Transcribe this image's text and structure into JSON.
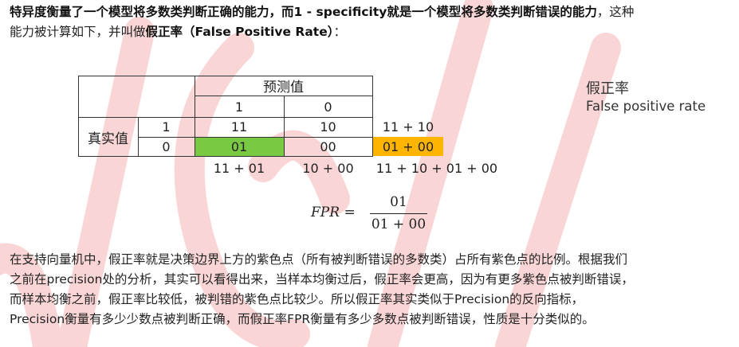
{
  "intro": {
    "line1_part1": "特异度衡量了一个模型将多数类判断正确的能力，而1 - specificity就是一个模型将多数类判断错误的能力",
    "line1_part2": "，这种",
    "line2_part1": "能力被计算如下，并叫做",
    "line2_bold": "假正率（False Positive Rate）",
    "line2_part2": "："
  },
  "table": {
    "predicted_header": "预测值",
    "pred_col_1": "1",
    "pred_col_0": "0",
    "actual_header": "真实值",
    "actual_row_1": "1",
    "actual_row_0": "0",
    "cell_11": "11",
    "cell_10": "10",
    "cell_01": "01",
    "cell_00": "00",
    "row1_sum": "11 + 10",
    "row0_sum": "01 + 00",
    "col1_sum": "11 + 01",
    "col0_sum": "10 + 00",
    "total_sum": "11 + 10 + 01 + 00"
  },
  "fpr_label": {
    "zh": "假正率",
    "en": "False positive rate"
  },
  "formula": {
    "lhs": "FPR =",
    "numerator": "01",
    "denominator": "01 + 00"
  },
  "body": {
    "line1": "在支持向量机中，假正率就是决策边界上方的紫色点（所有被判断错误的多数类）占所有紫色点的比例。根据我们",
    "line2": "之前在precision处的分析，其实可以看得出来，当样本均衡过后，假正率会更高，因为有更多紫色点被判断错误，",
    "line3": "而样本均衡之前，假正率比较低，被判错的紫色点比较少。所以假正率其实类似于Precision的反向指标，",
    "line4": "Precision衡量有多少少数点被判断正确，而假正率FPR衡量有多少多数点被判断错误，性质是十分类似的。"
  },
  "colors": {
    "highlight_green": "#7ac943",
    "highlight_orange": "#ffb400",
    "watermark": "#f4a0a0"
  }
}
